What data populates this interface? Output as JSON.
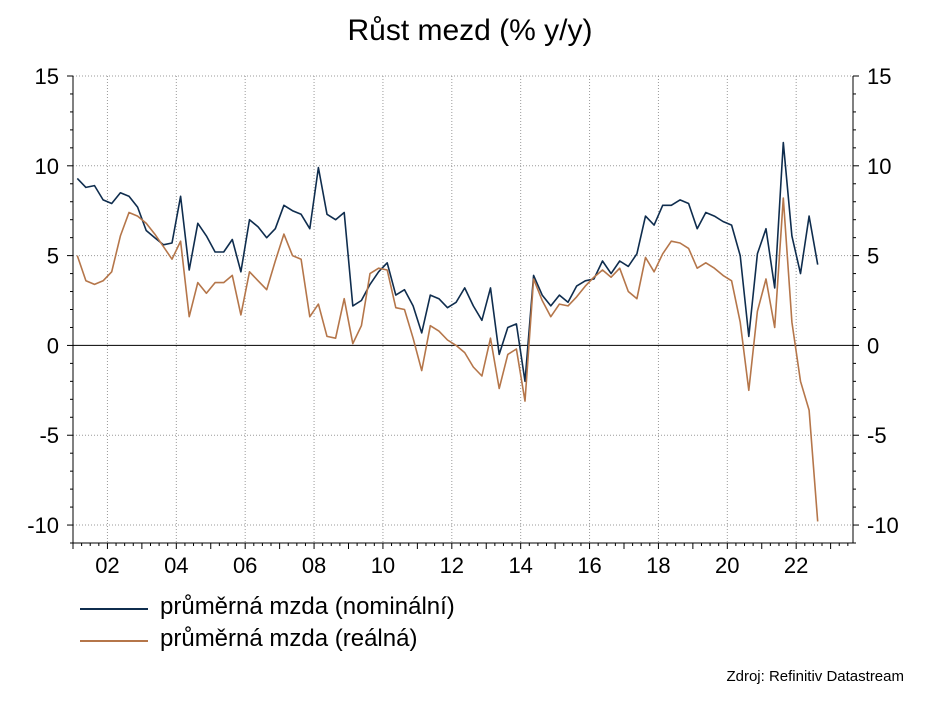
{
  "chart_data": {
    "type": "line",
    "title": "Růst mezd (% y/y)",
    "xlabel": "",
    "ylabel": "",
    "ylim": [
      -11,
      15
    ],
    "xlim": [
      2001.0,
      2023.65
    ],
    "y_ticks": [
      15,
      10,
      5,
      0,
      -5,
      -10
    ],
    "x_ticks": [
      {
        "x": 2002,
        "label": "02"
      },
      {
        "x": 2004,
        "label": "04"
      },
      {
        "x": 2006,
        "label": "06"
      },
      {
        "x": 2008,
        "label": "08"
      },
      {
        "x": 2010,
        "label": "10"
      },
      {
        "x": 2012,
        "label": "12"
      },
      {
        "x": 2014,
        "label": "14"
      },
      {
        "x": 2016,
        "label": "16"
      },
      {
        "x": 2018,
        "label": "18"
      },
      {
        "x": 2020,
        "label": "20"
      },
      {
        "x": 2022,
        "label": "22"
      }
    ],
    "grid": true,
    "legend_position": "bottom-left",
    "series": [
      {
        "name": "průměrná mzda (nominální)",
        "color": "#0f2d4e",
        "points": [
          [
            2001.125,
            9.3
          ],
          [
            2001.375,
            8.8
          ],
          [
            2001.625,
            8.9
          ],
          [
            2001.875,
            8.1
          ],
          [
            2002.125,
            7.9
          ],
          [
            2002.375,
            8.5
          ],
          [
            2002.625,
            8.3
          ],
          [
            2002.875,
            7.7
          ],
          [
            2003.125,
            6.4
          ],
          [
            2003.375,
            6.0
          ],
          [
            2003.625,
            5.6
          ],
          [
            2003.875,
            5.7
          ],
          [
            2004.125,
            8.3
          ],
          [
            2004.375,
            4.2
          ],
          [
            2004.625,
            6.8
          ],
          [
            2004.875,
            6.1
          ],
          [
            2005.125,
            5.2
          ],
          [
            2005.375,
            5.2
          ],
          [
            2005.625,
            5.9
          ],
          [
            2005.875,
            4.1
          ],
          [
            2006.125,
            7.0
          ],
          [
            2006.375,
            6.6
          ],
          [
            2006.625,
            6.0
          ],
          [
            2006.875,
            6.5
          ],
          [
            2007.125,
            7.8
          ],
          [
            2007.375,
            7.5
          ],
          [
            2007.625,
            7.3
          ],
          [
            2007.875,
            6.5
          ],
          [
            2008.125,
            9.9
          ],
          [
            2008.375,
            7.3
          ],
          [
            2008.625,
            7.0
          ],
          [
            2008.875,
            7.4
          ],
          [
            2009.125,
            2.2
          ],
          [
            2009.375,
            2.5
          ],
          [
            2009.625,
            3.4
          ],
          [
            2009.875,
            4.1
          ],
          [
            2010.125,
            4.6
          ],
          [
            2010.375,
            2.8
          ],
          [
            2010.625,
            3.1
          ],
          [
            2010.875,
            2.2
          ],
          [
            2011.125,
            0.7
          ],
          [
            2011.375,
            2.8
          ],
          [
            2011.625,
            2.6
          ],
          [
            2011.875,
            2.1
          ],
          [
            2012.125,
            2.4
          ],
          [
            2012.375,
            3.2
          ],
          [
            2012.625,
            2.2
          ],
          [
            2012.875,
            1.4
          ],
          [
            2013.125,
            3.2
          ],
          [
            2013.375,
            -0.5
          ],
          [
            2013.625,
            1.0
          ],
          [
            2013.875,
            1.2
          ],
          [
            2014.125,
            -2.0
          ],
          [
            2014.375,
            3.9
          ],
          [
            2014.625,
            2.8
          ],
          [
            2014.875,
            2.2
          ],
          [
            2015.125,
            2.8
          ],
          [
            2015.375,
            2.4
          ],
          [
            2015.625,
            3.3
          ],
          [
            2015.875,
            3.6
          ],
          [
            2016.125,
            3.7
          ],
          [
            2016.375,
            4.7
          ],
          [
            2016.625,
            4.0
          ],
          [
            2016.875,
            4.7
          ],
          [
            2017.125,
            4.4
          ],
          [
            2017.375,
            5.1
          ],
          [
            2017.625,
            7.2
          ],
          [
            2017.875,
            6.7
          ],
          [
            2018.125,
            7.8
          ],
          [
            2018.375,
            7.8
          ],
          [
            2018.625,
            8.1
          ],
          [
            2018.875,
            7.9
          ],
          [
            2019.125,
            6.5
          ],
          [
            2019.375,
            7.4
          ],
          [
            2019.625,
            7.2
          ],
          [
            2019.875,
            6.9
          ],
          [
            2020.125,
            6.7
          ],
          [
            2020.375,
            5.0
          ],
          [
            2020.625,
            0.5
          ],
          [
            2020.875,
            5.1
          ],
          [
            2021.125,
            6.5
          ],
          [
            2021.375,
            3.2
          ],
          [
            2021.625,
            11.3
          ],
          [
            2021.875,
            6.1
          ],
          [
            2022.125,
            4.0
          ],
          [
            2022.375,
            7.2
          ],
          [
            2022.625,
            4.5
          ]
        ]
      },
      {
        "name": "průměrná mzda (reálná)",
        "color": "#b5764a",
        "points": [
          [
            2001.125,
            5.0
          ],
          [
            2001.375,
            3.6
          ],
          [
            2001.625,
            3.4
          ],
          [
            2001.875,
            3.6
          ],
          [
            2002.125,
            4.1
          ],
          [
            2002.375,
            6.1
          ],
          [
            2002.625,
            7.4
          ],
          [
            2002.875,
            7.2
          ],
          [
            2003.125,
            6.8
          ],
          [
            2003.375,
            6.2
          ],
          [
            2003.625,
            5.5
          ],
          [
            2003.875,
            4.8
          ],
          [
            2004.125,
            5.8
          ],
          [
            2004.375,
            1.6
          ],
          [
            2004.625,
            3.5
          ],
          [
            2004.875,
            2.9
          ],
          [
            2005.125,
            3.5
          ],
          [
            2005.375,
            3.5
          ],
          [
            2005.625,
            3.9
          ],
          [
            2005.875,
            1.7
          ],
          [
            2006.125,
            4.1
          ],
          [
            2006.375,
            3.6
          ],
          [
            2006.625,
            3.1
          ],
          [
            2006.875,
            4.7
          ],
          [
            2007.125,
            6.2
          ],
          [
            2007.375,
            5.0
          ],
          [
            2007.625,
            4.8
          ],
          [
            2007.875,
            1.6
          ],
          [
            2008.125,
            2.3
          ],
          [
            2008.375,
            0.5
          ],
          [
            2008.625,
            0.4
          ],
          [
            2008.875,
            2.6
          ],
          [
            2009.125,
            0.1
          ],
          [
            2009.375,
            1.1
          ],
          [
            2009.625,
            4.0
          ],
          [
            2009.875,
            4.3
          ],
          [
            2010.125,
            4.2
          ],
          [
            2010.375,
            2.1
          ],
          [
            2010.625,
            2.0
          ],
          [
            2010.875,
            0.4
          ],
          [
            2011.125,
            -1.4
          ],
          [
            2011.375,
            1.1
          ],
          [
            2011.625,
            0.8
          ],
          [
            2011.875,
            0.3
          ],
          [
            2012.125,
            0.0
          ],
          [
            2012.375,
            -0.4
          ],
          [
            2012.625,
            -1.2
          ],
          [
            2012.875,
            -1.7
          ],
          [
            2013.125,
            0.4
          ],
          [
            2013.375,
            -2.4
          ],
          [
            2013.625,
            -0.5
          ],
          [
            2013.875,
            -0.2
          ],
          [
            2014.125,
            -3.1
          ],
          [
            2014.375,
            3.7
          ],
          [
            2014.625,
            2.5
          ],
          [
            2014.875,
            1.6
          ],
          [
            2015.125,
            2.3
          ],
          [
            2015.375,
            2.2
          ],
          [
            2015.625,
            2.7
          ],
          [
            2015.875,
            3.3
          ],
          [
            2016.125,
            3.8
          ],
          [
            2016.375,
            4.2
          ],
          [
            2016.625,
            3.8
          ],
          [
            2016.875,
            4.3
          ],
          [
            2017.125,
            3.0
          ],
          [
            2017.375,
            2.6
          ],
          [
            2017.625,
            4.9
          ],
          [
            2017.875,
            4.1
          ],
          [
            2018.125,
            5.1
          ],
          [
            2018.375,
            5.8
          ],
          [
            2018.625,
            5.7
          ],
          [
            2018.875,
            5.4
          ],
          [
            2019.125,
            4.3
          ],
          [
            2019.375,
            4.6
          ],
          [
            2019.625,
            4.3
          ],
          [
            2019.875,
            3.9
          ],
          [
            2020.125,
            3.6
          ],
          [
            2020.375,
            1.3
          ],
          [
            2020.625,
            -2.5
          ],
          [
            2020.875,
            1.9
          ],
          [
            2021.125,
            3.7
          ],
          [
            2021.375,
            1.0
          ],
          [
            2021.625,
            8.2
          ],
          [
            2021.875,
            1.3
          ],
          [
            2022.125,
            -2.0
          ],
          [
            2022.375,
            -3.6
          ],
          [
            2022.625,
            -9.8
          ]
        ]
      }
    ]
  },
  "source": "Zdroj: Refinitiv Datastream"
}
